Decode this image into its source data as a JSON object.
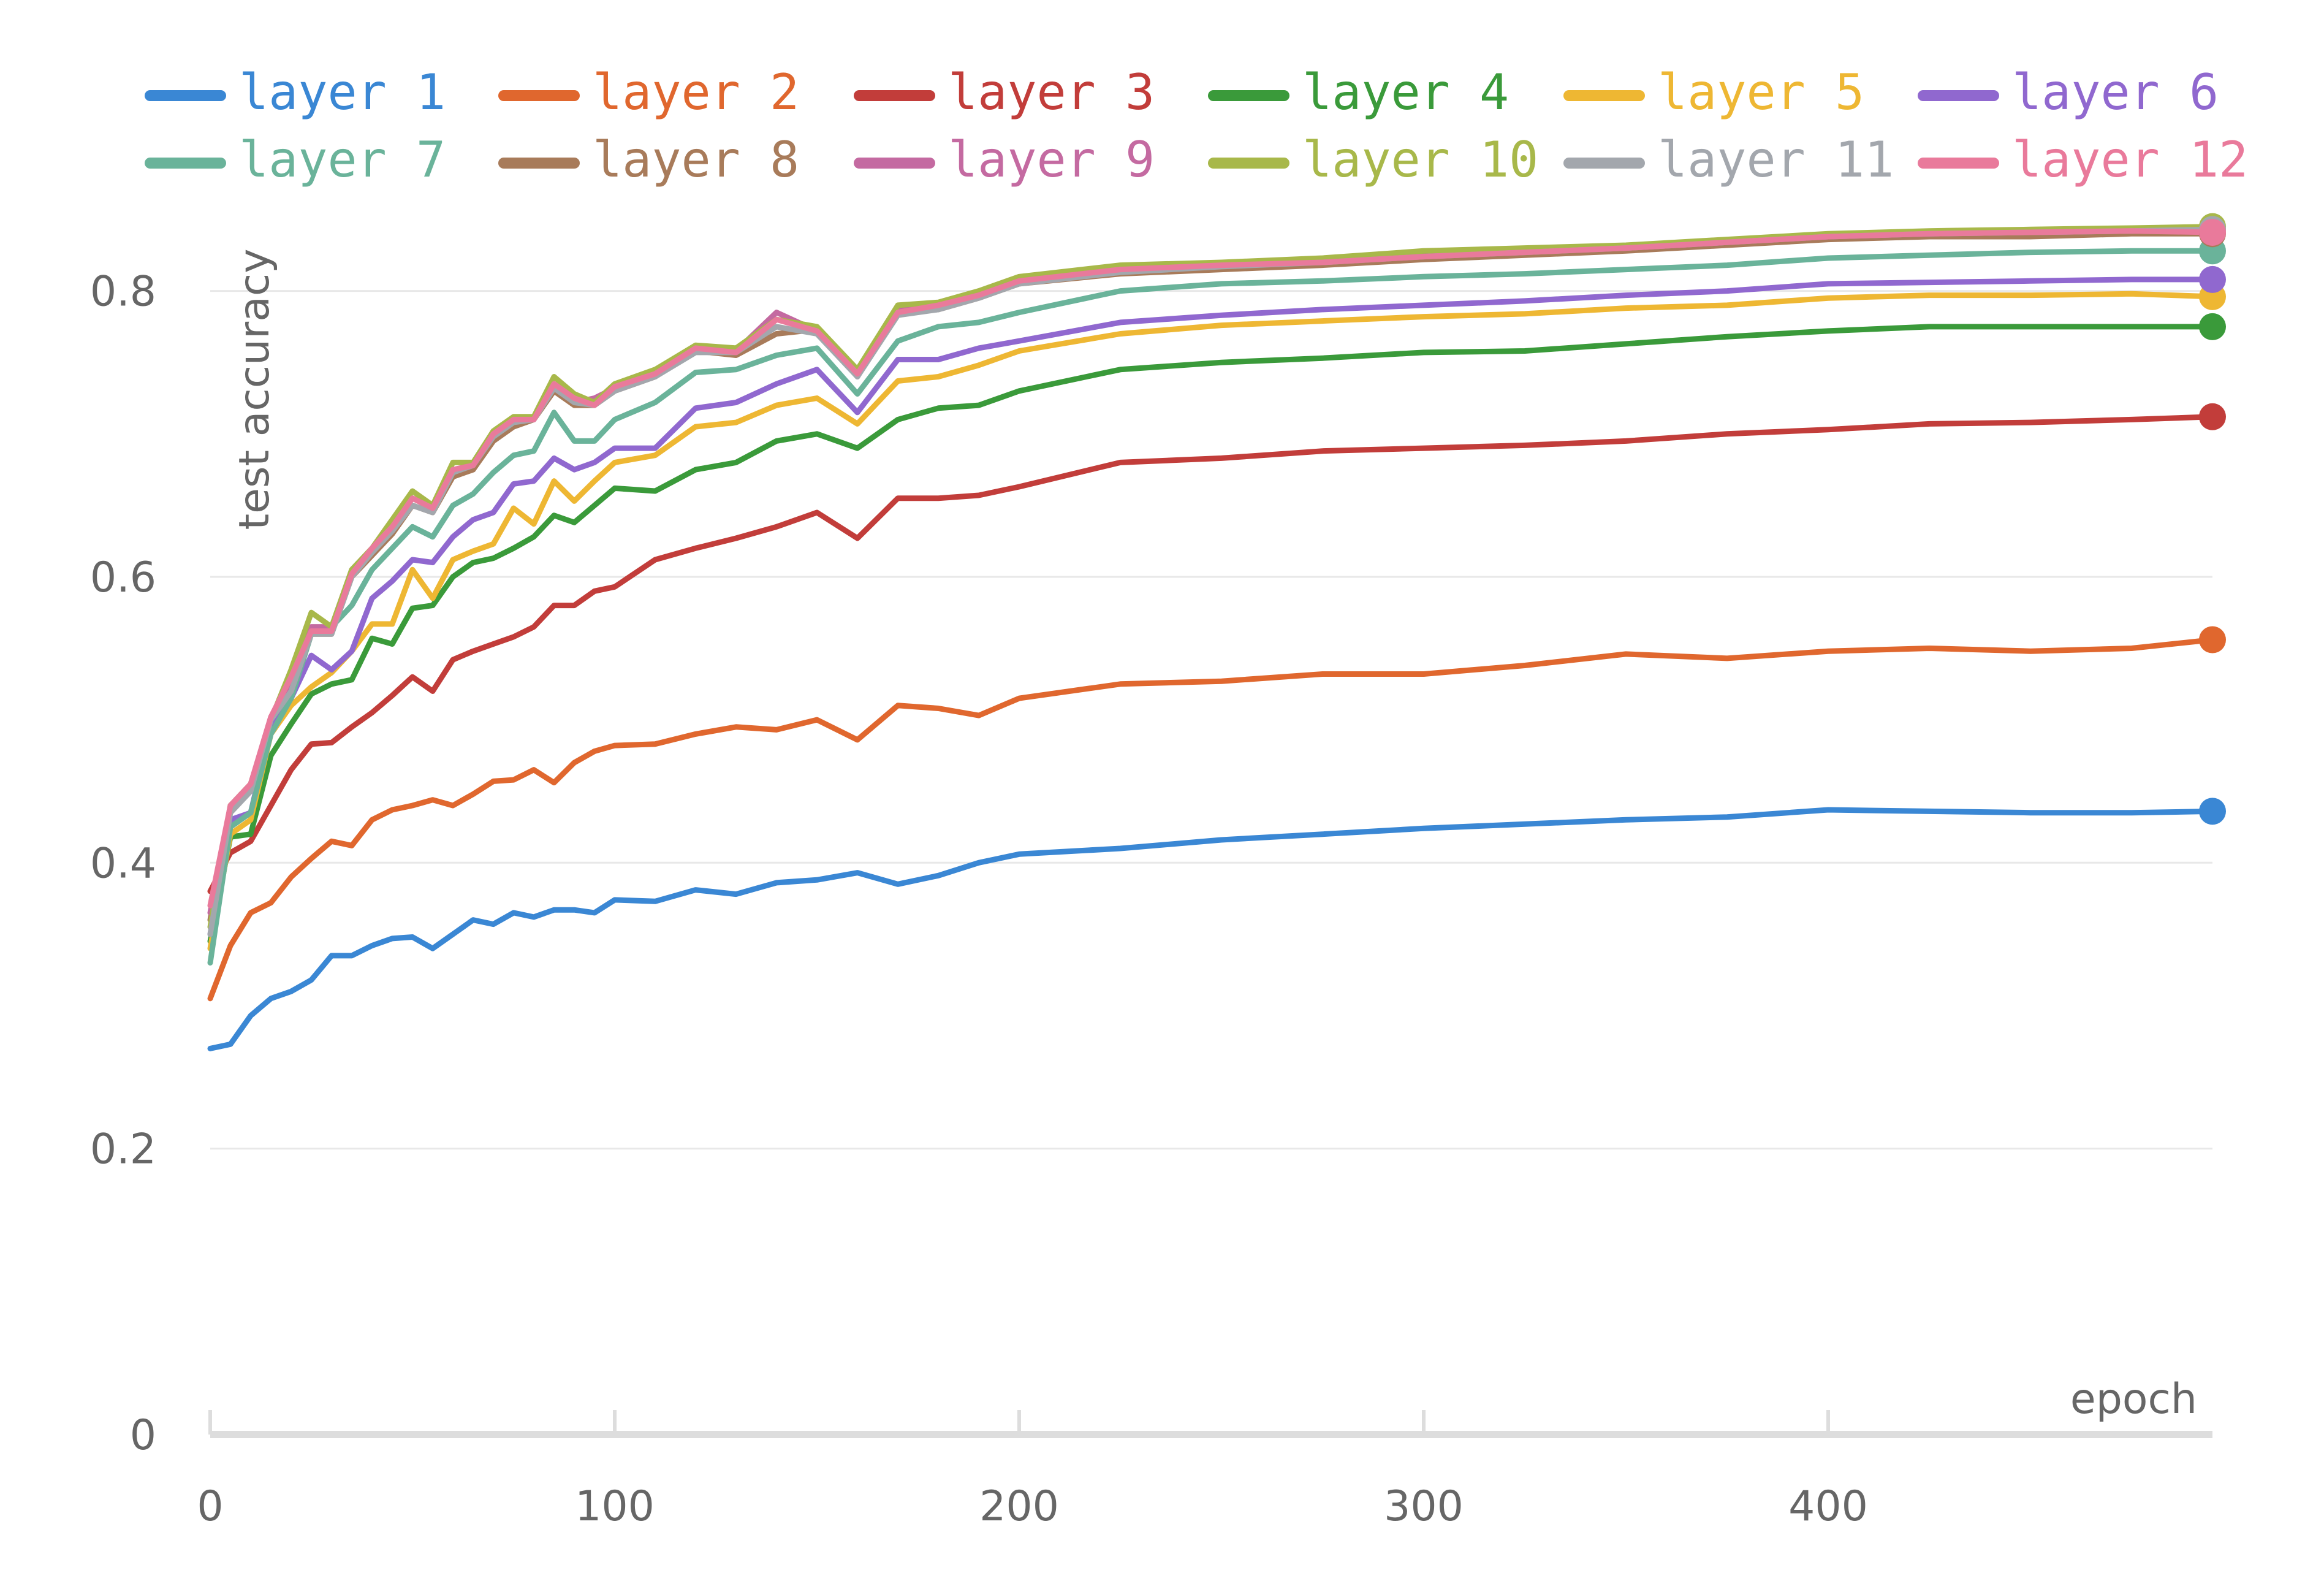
{
  "colors": {
    "grid": "#e8e8e8",
    "axis": "#dddddd",
    "tick_text": "#666666"
  },
  "chart_data": {
    "type": "line",
    "title": "",
    "xlabel": "epoch",
    "ylabel": "test accuracy",
    "xlim": [
      0,
      495
    ],
    "ylim": [
      0,
      0.85
    ],
    "x_ticks": [
      0,
      100,
      200,
      300,
      400
    ],
    "x_tick_labels": [
      "0",
      "100",
      "200",
      "300",
      "400"
    ],
    "y_ticks": [
      0,
      0.2,
      0.4,
      0.6,
      0.8
    ],
    "y_tick_labels": [
      "0",
      "0.2",
      "0.4",
      "0.6",
      "0.8"
    ],
    "grid": "horizontal",
    "legend_position": "top",
    "end_markers": true,
    "x": [
      0,
      5,
      10,
      15,
      20,
      25,
      30,
      35,
      40,
      45,
      50,
      55,
      60,
      65,
      70,
      75,
      80,
      85,
      90,
      95,
      100,
      110,
      120,
      130,
      140,
      150,
      160,
      170,
      180,
      190,
      200,
      225,
      250,
      275,
      300,
      325,
      350,
      375,
      400,
      425,
      450,
      475,
      495
    ],
    "series": [
      {
        "name": "layer 1",
        "color": "#3a87d4",
        "values": [
          0.27,
          0.273,
          0.293,
          0.305,
          0.31,
          0.318,
          0.335,
          0.335,
          0.342,
          0.347,
          0.348,
          0.34,
          0.35,
          0.36,
          0.357,
          0.365,
          0.362,
          0.367,
          0.367,
          0.365,
          0.374,
          0.373,
          0.381,
          0.378,
          0.386,
          0.388,
          0.393,
          0.385,
          0.391,
          0.4,
          0.406,
          0.41,
          0.416,
          0.42,
          0.424,
          0.427,
          0.43,
          0.432,
          0.437,
          0.436,
          0.435,
          0.435,
          0.436
        ]
      },
      {
        "name": "layer 2",
        "color": "#e0672e",
        "values": [
          0.305,
          0.342,
          0.365,
          0.372,
          0.39,
          0.403,
          0.415,
          0.412,
          0.43,
          0.437,
          0.44,
          0.444,
          0.44,
          0.448,
          0.457,
          0.458,
          0.465,
          0.456,
          0.47,
          0.478,
          0.482,
          0.483,
          0.49,
          0.495,
          0.493,
          0.5,
          0.486,
          0.51,
          0.508,
          0.503,
          0.515,
          0.525,
          0.527,
          0.532,
          0.532,
          0.538,
          0.546,
          0.543,
          0.548,
          0.55,
          0.548,
          0.55,
          0.556
        ]
      },
      {
        "name": "layer 3",
        "color": "#c23d3a",
        "values": [
          0.38,
          0.407,
          0.415,
          0.44,
          0.465,
          0.483,
          0.484,
          0.495,
          0.505,
          0.517,
          0.53,
          0.52,
          0.542,
          0.548,
          0.553,
          0.558,
          0.565,
          0.58,
          0.58,
          0.59,
          0.593,
          0.612,
          0.62,
          0.627,
          0.635,
          0.645,
          0.627,
          0.655,
          0.655,
          0.657,
          0.663,
          0.68,
          0.683,
          0.688,
          0.69,
          0.692,
          0.695,
          0.7,
          0.703,
          0.707,
          0.708,
          0.71,
          0.712
        ]
      },
      {
        "name": "layer 4",
        "color": "#3a9a3a",
        "values": [
          0.345,
          0.418,
          0.42,
          0.475,
          0.497,
          0.518,
          0.525,
          0.528,
          0.557,
          0.553,
          0.578,
          0.58,
          0.6,
          0.61,
          0.613,
          0.62,
          0.628,
          0.643,
          0.638,
          0.65,
          0.662,
          0.66,
          0.675,
          0.68,
          0.695,
          0.7,
          0.69,
          0.71,
          0.718,
          0.72,
          0.73,
          0.745,
          0.75,
          0.753,
          0.757,
          0.758,
          0.763,
          0.768,
          0.772,
          0.775,
          0.775,
          0.775,
          0.775
        ]
      },
      {
        "name": "layer 5",
        "color": "#eeb733",
        "values": [
          0.34,
          0.42,
          0.43,
          0.49,
          0.51,
          0.523,
          0.533,
          0.548,
          0.567,
          0.567,
          0.605,
          0.585,
          0.612,
          0.618,
          0.623,
          0.648,
          0.637,
          0.667,
          0.653,
          0.667,
          0.68,
          0.685,
          0.705,
          0.708,
          0.72,
          0.725,
          0.707,
          0.737,
          0.74,
          0.748,
          0.758,
          0.77,
          0.776,
          0.779,
          0.782,
          0.784,
          0.788,
          0.79,
          0.795,
          0.797,
          0.797,
          0.798,
          0.796
        ]
      },
      {
        "name": "layer 6",
        "color": "#9068cf",
        "values": [
          0.35,
          0.43,
          0.435,
          0.495,
          0.515,
          0.545,
          0.535,
          0.548,
          0.585,
          0.597,
          0.612,
          0.61,
          0.628,
          0.64,
          0.645,
          0.665,
          0.667,
          0.683,
          0.675,
          0.68,
          0.69,
          0.69,
          0.718,
          0.722,
          0.735,
          0.745,
          0.715,
          0.752,
          0.752,
          0.76,
          0.765,
          0.778,
          0.783,
          0.787,
          0.79,
          0.793,
          0.797,
          0.8,
          0.805,
          0.806,
          0.807,
          0.808,
          0.808
        ]
      },
      {
        "name": "layer 7",
        "color": "#6ab39a",
        "values": [
          0.33,
          0.425,
          0.435,
          0.49,
          0.515,
          0.56,
          0.565,
          0.58,
          0.605,
          0.62,
          0.635,
          0.628,
          0.65,
          0.658,
          0.673,
          0.685,
          0.688,
          0.715,
          0.695,
          0.695,
          0.71,
          0.722,
          0.743,
          0.745,
          0.755,
          0.76,
          0.728,
          0.765,
          0.775,
          0.778,
          0.785,
          0.8,
          0.805,
          0.807,
          0.81,
          0.812,
          0.815,
          0.818,
          0.823,
          0.825,
          0.827,
          0.828,
          0.828
        ]
      },
      {
        "name": "layer 8",
        "color": "#a87b5a",
        "values": [
          0.36,
          0.44,
          0.455,
          0.5,
          0.525,
          0.56,
          0.56,
          0.6,
          0.615,
          0.63,
          0.65,
          0.645,
          0.67,
          0.675,
          0.695,
          0.705,
          0.71,
          0.73,
          0.72,
          0.72,
          0.73,
          0.74,
          0.758,
          0.755,
          0.77,
          0.773,
          0.742,
          0.785,
          0.787,
          0.795,
          0.805,
          0.812,
          0.815,
          0.818,
          0.822,
          0.825,
          0.828,
          0.832,
          0.836,
          0.838,
          0.838,
          0.84,
          0.84
        ]
      },
      {
        "name": "layer 9",
        "color": "#c46aa1",
        "values": [
          0.365,
          0.44,
          0.455,
          0.502,
          0.527,
          0.565,
          0.565,
          0.605,
          0.62,
          0.635,
          0.655,
          0.648,
          0.673,
          0.678,
          0.7,
          0.71,
          0.712,
          0.733,
          0.722,
          0.725,
          0.732,
          0.742,
          0.76,
          0.758,
          0.785,
          0.772,
          0.74,
          0.787,
          0.79,
          0.797,
          0.806,
          0.815,
          0.818,
          0.82,
          0.825,
          0.828,
          0.83,
          0.834,
          0.838,
          0.84,
          0.841,
          0.842,
          0.843
        ]
      },
      {
        "name": "layer 10",
        "color": "#a8b84a",
        "values": [
          0.355,
          0.44,
          0.455,
          0.5,
          0.535,
          0.575,
          0.565,
          0.605,
          0.62,
          0.64,
          0.66,
          0.65,
          0.68,
          0.68,
          0.702,
          0.712,
          0.712,
          0.74,
          0.728,
          0.722,
          0.735,
          0.745,
          0.762,
          0.76,
          0.78,
          0.775,
          0.745,
          0.79,
          0.792,
          0.8,
          0.81,
          0.818,
          0.82,
          0.823,
          0.828,
          0.83,
          0.832,
          0.836,
          0.84,
          0.842,
          0.843,
          0.844,
          0.845
        ]
      },
      {
        "name": "layer 11",
        "color": "#a3a7ad",
        "values": [
          0.35,
          0.435,
          0.45,
          0.5,
          0.52,
          0.56,
          0.56,
          0.6,
          0.617,
          0.632,
          0.65,
          0.645,
          0.673,
          0.678,
          0.698,
          0.708,
          0.71,
          0.732,
          0.722,
          0.72,
          0.73,
          0.74,
          0.757,
          0.757,
          0.775,
          0.77,
          0.74,
          0.783,
          0.787,
          0.795,
          0.805,
          0.813,
          0.817,
          0.82,
          0.824,
          0.827,
          0.83,
          0.834,
          0.838,
          0.84,
          0.841,
          0.842,
          0.843
        ]
      },
      {
        "name": "layer 12",
        "color": "#e97a9b",
        "values": [
          0.37,
          0.44,
          0.455,
          0.502,
          0.53,
          0.562,
          0.562,
          0.602,
          0.62,
          0.635,
          0.655,
          0.648,
          0.675,
          0.678,
          0.7,
          0.71,
          0.71,
          0.735,
          0.725,
          0.72,
          0.733,
          0.742,
          0.76,
          0.757,
          0.78,
          0.772,
          0.742,
          0.785,
          0.79,
          0.797,
          0.807,
          0.815,
          0.818,
          0.82,
          0.824,
          0.827,
          0.83,
          0.834,
          0.838,
          0.84,
          0.841,
          0.842,
          0.841
        ]
      }
    ]
  }
}
